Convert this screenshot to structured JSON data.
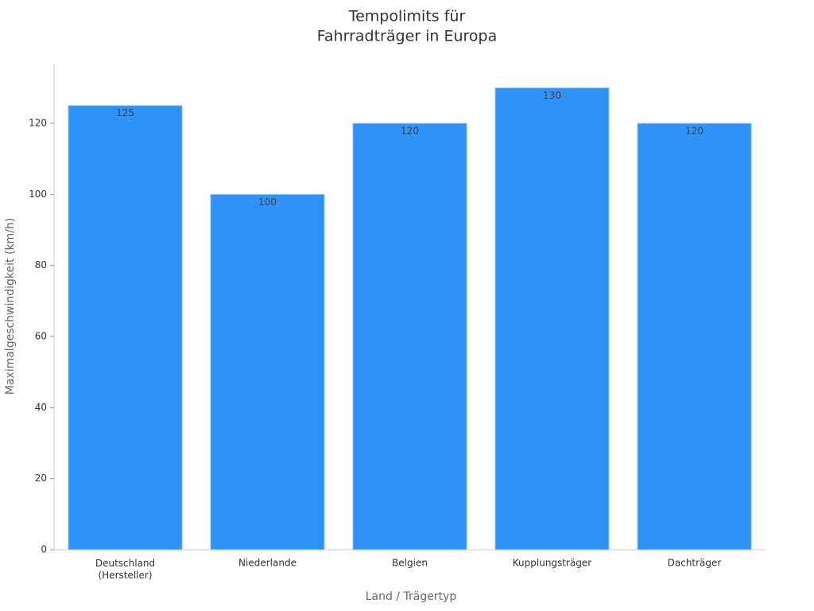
{
  "chart_data": {
    "type": "bar",
    "title": "Tempolimits für\nFahrradträger in Europa",
    "x_label": "Land / Trägertyp",
    "y_label": "Maximalgeschwindigkeit (km/h)",
    "categories": [
      "Deutschland\n(Hersteller)",
      "Niederlande",
      "Belgien",
      "Kupplungsträger",
      "Dachträger"
    ],
    "values": [
      125,
      100,
      120,
      130,
      120
    ],
    "color": "#2f92f7",
    "ylim": [
      0,
      136.8
    ],
    "yticks": [
      0,
      20,
      40,
      60,
      80,
      100,
      120
    ],
    "grid": false
  }
}
